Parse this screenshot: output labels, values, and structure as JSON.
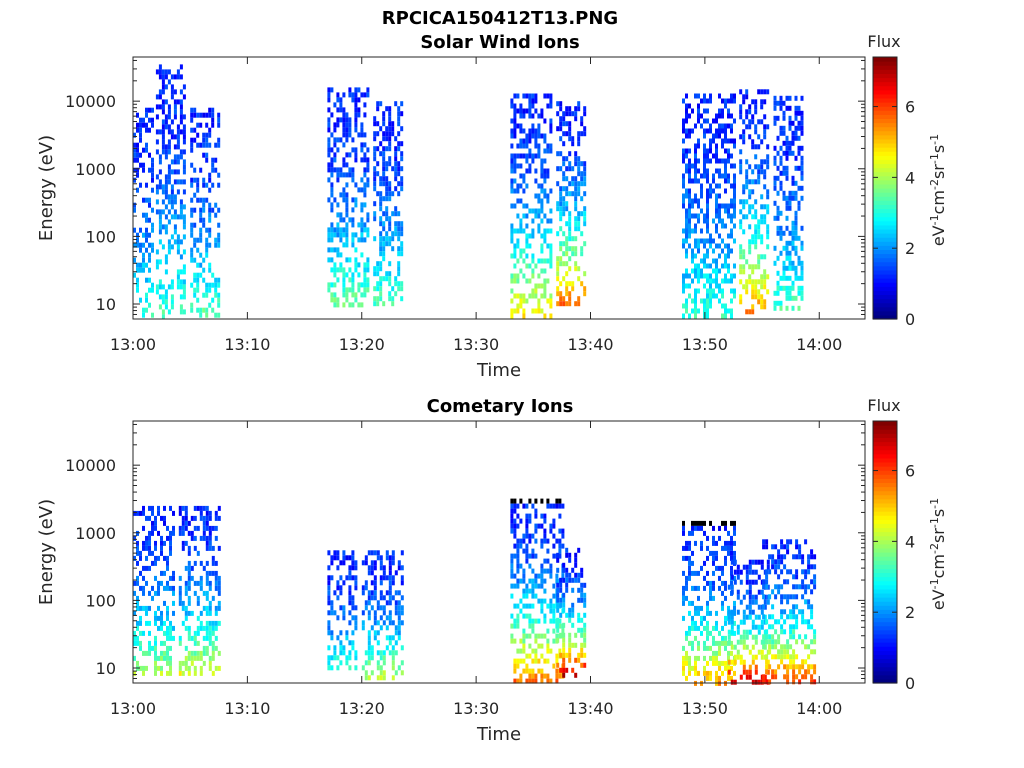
{
  "figure_title": "RPCICA150412T13.PNG",
  "chart_data": [
    {
      "type": "heatmap",
      "title": "Solar Wind Ions",
      "xlabel": "Time",
      "ylabel": "Energy (eV)",
      "y_scale": "log",
      "ylim": [
        6,
        45000
      ],
      "xlim_minutes": [
        0,
        64
      ],
      "x_ticks": [
        "13:00",
        "13:10",
        "13:20",
        "13:30",
        "13:40",
        "13:50",
        "14:00"
      ],
      "y_ticks": [
        "10",
        "100",
        "1000",
        "10000"
      ],
      "colorbar": {
        "label": "Flux",
        "unit": "eV-1cm-2sr-1s-1",
        "min": 0,
        "max": 7.4,
        "ticks": [
          "0",
          "2",
          "4",
          "6"
        ],
        "colormap": "jet"
      },
      "bursts": [
        {
          "t_start": "13:00",
          "t_end": "13:01",
          "e_min": 7,
          "e_max": 8000,
          "peak_flux": 3.2
        },
        {
          "t_start": "13:02",
          "t_end": "13:04",
          "e_min": 7,
          "e_max": 35000,
          "peak_flux": 3.3
        },
        {
          "t_start": "13:05",
          "t_end": "13:07",
          "e_min": 7,
          "e_max": 8000,
          "peak_flux": 3.5
        },
        {
          "t_start": "13:17",
          "t_end": "13:20",
          "e_min": 10,
          "e_max": 16000,
          "peak_flux": 3.6
        },
        {
          "t_start": "13:21",
          "t_end": "13:23",
          "e_min": 10,
          "e_max": 10000,
          "peak_flux": 3.4
        },
        {
          "t_start": "13:33",
          "t_end": "13:36",
          "e_min": 7,
          "e_max": 13000,
          "peak_flux": 4.8
        },
        {
          "t_start": "13:37",
          "t_end": "13:39",
          "e_min": 10,
          "e_max": 10000,
          "peak_flux": 5.8
        },
        {
          "t_start": "13:48",
          "t_end": "13:52",
          "e_min": 7,
          "e_max": 13000,
          "peak_flux": 3.2
        },
        {
          "t_start": "13:53",
          "t_end": "13:55",
          "e_min": 8,
          "e_max": 15000,
          "peak_flux": 5.5
        },
        {
          "t_start": "13:56",
          "t_end": "13:58",
          "e_min": 8,
          "e_max": 12000,
          "peak_flux": 3.4
        }
      ]
    },
    {
      "type": "heatmap",
      "title": "Cometary Ions",
      "xlabel": "Time",
      "ylabel": "Energy (eV)",
      "y_scale": "log",
      "ylim": [
        6,
        45000
      ],
      "xlim_minutes": [
        0,
        64
      ],
      "x_ticks": [
        "13:00",
        "13:10",
        "13:20",
        "13:30",
        "13:40",
        "13:50",
        "14:00"
      ],
      "y_ticks": [
        "10",
        "100",
        "1000",
        "10000"
      ],
      "colorbar": {
        "label": "Flux",
        "unit": "eV-1cm-2sr-1s-1",
        "min": 0,
        "max": 7.4,
        "ticks": [
          "0",
          "2",
          "4",
          "6"
        ],
        "colormap": "jet"
      },
      "bursts": [
        {
          "t_start": "13:00",
          "t_end": "13:03",
          "e_min": 8,
          "e_max": 2500,
          "peak_flux": 4.2
        },
        {
          "t_start": "13:04",
          "t_end": "13:07",
          "e_min": 8,
          "e_max": 2500,
          "peak_flux": 4.6
        },
        {
          "t_start": "13:17",
          "t_end": "13:19",
          "e_min": 10,
          "e_max": 550,
          "peak_flux": 3.2
        },
        {
          "t_start": "13:20",
          "t_end": "13:23",
          "e_min": 7,
          "e_max": 550,
          "peak_flux": 4.3
        },
        {
          "t_start": "13:33",
          "t_end": "13:37",
          "e_min": 6,
          "e_max": 3200,
          "peak_flux": 6.0
        },
        {
          "t_start": "13:37",
          "t_end": "13:39",
          "e_min": 8,
          "e_max": 600,
          "peak_flux": 7.0
        },
        {
          "t_start": "13:48",
          "t_end": "13:52",
          "e_min": 6,
          "e_max": 1500,
          "peak_flux": 5.5
        },
        {
          "t_start": "13:52",
          "t_end": "13:55",
          "e_min": 6,
          "e_max": 400,
          "peak_flux": 7.2
        },
        {
          "t_start": "13:55",
          "t_end": "13:59",
          "e_min": 6,
          "e_max": 800,
          "peak_flux": 6.5
        }
      ]
    }
  ]
}
